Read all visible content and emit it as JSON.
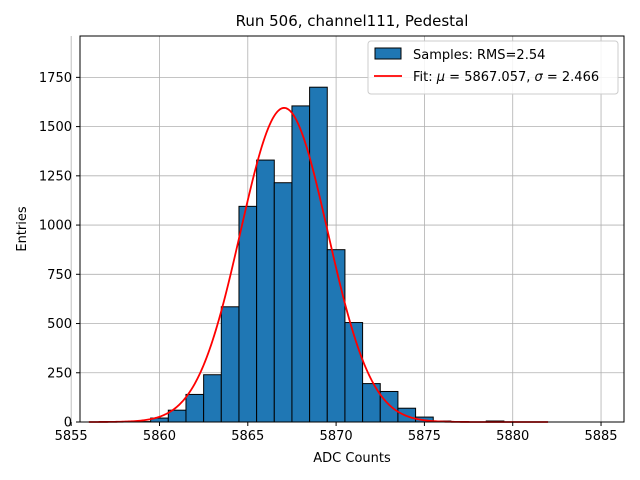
{
  "chart_data": {
    "type": "bar",
    "title": "Run 506, channel111, Pedestal",
    "xlabel": "ADC Counts",
    "ylabel": "Entries",
    "xlim": [
      5855.5,
      5886.3
    ],
    "ylim": [
      0,
      1960
    ],
    "xticks": [
      5855,
      5860,
      5865,
      5870,
      5875,
      5880,
      5885
    ],
    "yticks": [
      0,
      250,
      500,
      750,
      1000,
      1250,
      1500,
      1750
    ],
    "grid": true,
    "legend_position": "top-right",
    "bin_width": 1.0,
    "bins": [
      {
        "x_left": 5858.5,
        "value": 2
      },
      {
        "x_left": 5859.5,
        "value": 20
      },
      {
        "x_left": 5860.5,
        "value": 60
      },
      {
        "x_left": 5861.5,
        "value": 140
      },
      {
        "x_left": 5862.5,
        "value": 240
      },
      {
        "x_left": 5863.5,
        "value": 585
      },
      {
        "x_left": 5864.5,
        "value": 1095
      },
      {
        "x_left": 5865.5,
        "value": 1330
      },
      {
        "x_left": 5866.5,
        "value": 1215
      },
      {
        "x_left": 5867.5,
        "value": 1605
      },
      {
        "x_left": 5868.5,
        "value": 1700
      },
      {
        "x_left": 5869.5,
        "value": 875
      },
      {
        "x_left": 5870.5,
        "value": 505
      },
      {
        "x_left": 5871.5,
        "value": 195
      },
      {
        "x_left": 5872.5,
        "value": 155
      },
      {
        "x_left": 5873.5,
        "value": 70
      },
      {
        "x_left": 5874.5,
        "value": 25
      },
      {
        "x_left": 5875.5,
        "value": 5
      },
      {
        "x_left": 5878.5,
        "value": 5
      }
    ],
    "fit": {
      "mu": 5867.057,
      "sigma": 2.466,
      "amplitude": 1595,
      "x_range": [
        5856,
        5882
      ]
    },
    "series": [
      {
        "name": "Samples: RMS=2.54",
        "kind": "histogram",
        "color": "#1f77b4"
      },
      {
        "name": "Fit: μ = 5867.057, σ = 2.466",
        "kind": "line",
        "color": "#ff0000"
      }
    ],
    "legend": {
      "samples_label": "Samples: RMS=2.54",
      "fit_prefix": "Fit: ",
      "mu_symbol": "μ",
      "mu_value": " = 5867.057, ",
      "sigma_symbol": "σ",
      "sigma_value": " = 2.466"
    }
  }
}
